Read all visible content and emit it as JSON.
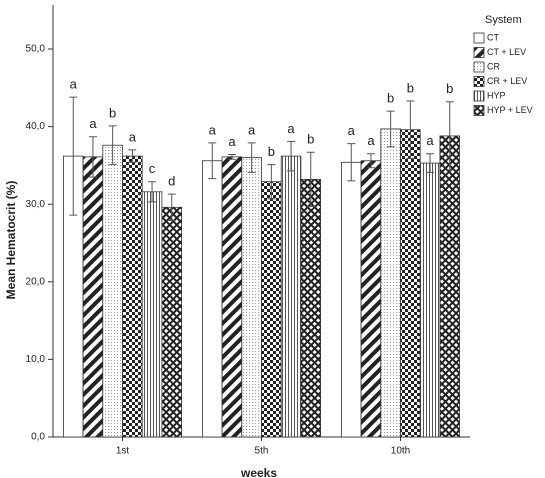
{
  "chart_data": {
    "type": "bar",
    "x_label": "weeks",
    "y_label": "Mean Hematocrit (%)",
    "legend_title": "System",
    "legend": "right",
    "categories": [
      "1st",
      "5th",
      "10th"
    ],
    "ylim": [
      0,
      55
    ],
    "yticks": [
      {
        "value": 0,
        "label": "0,0"
      },
      {
        "value": 10,
        "label": "10,0"
      },
      {
        "value": 20,
        "label": "20,0"
      },
      {
        "value": 30,
        "label": "30,0"
      },
      {
        "value": 40,
        "label": "40,0"
      },
      {
        "value": 50,
        "label": "50,0"
      }
    ],
    "series": [
      {
        "name": "CT",
        "pattern": "none",
        "color": "#ffffff",
        "values": [
          36.2,
          35.6,
          35.4
        ],
        "errors": [
          7.6,
          2.3,
          2.4
        ],
        "labels": [
          "a",
          "a",
          "a"
        ]
      },
      {
        "name": "CT + LEV",
        "pattern": "diagonal",
        "color": "#222222",
        "values": [
          36.1,
          36.1,
          35.6
        ],
        "errors": [
          2.6,
          0.3,
          0.9
        ],
        "labels": [
          "a",
          "a",
          "a"
        ]
      },
      {
        "name": "CR",
        "pattern": "dots",
        "color": "#999999",
        "values": [
          37.6,
          36.0,
          39.7
        ],
        "errors": [
          2.5,
          1.9,
          2.3
        ],
        "labels": [
          "b",
          "a",
          "b"
        ]
      },
      {
        "name": "CR + LEV",
        "pattern": "checker",
        "color": "#222222",
        "values": [
          36.2,
          32.9,
          39.6
        ],
        "errors": [
          0.8,
          2.2,
          3.7
        ],
        "labels": [
          "a",
          "b",
          "b"
        ]
      },
      {
        "name": "HYP",
        "pattern": "vertical",
        "color": "#555555",
        "values": [
          31.6,
          36.2,
          35.3
        ],
        "errors": [
          1.3,
          1.9,
          1.2
        ],
        "labels": [
          "c",
          "a",
          "a"
        ]
      },
      {
        "name": "HYP + LEV",
        "pattern": "cross",
        "color": "#222222",
        "values": [
          29.6,
          33.2,
          38.8
        ],
        "errors": [
          1.7,
          3.5,
          4.4
        ],
        "labels": [
          "d",
          "b",
          "b"
        ]
      }
    ]
  }
}
